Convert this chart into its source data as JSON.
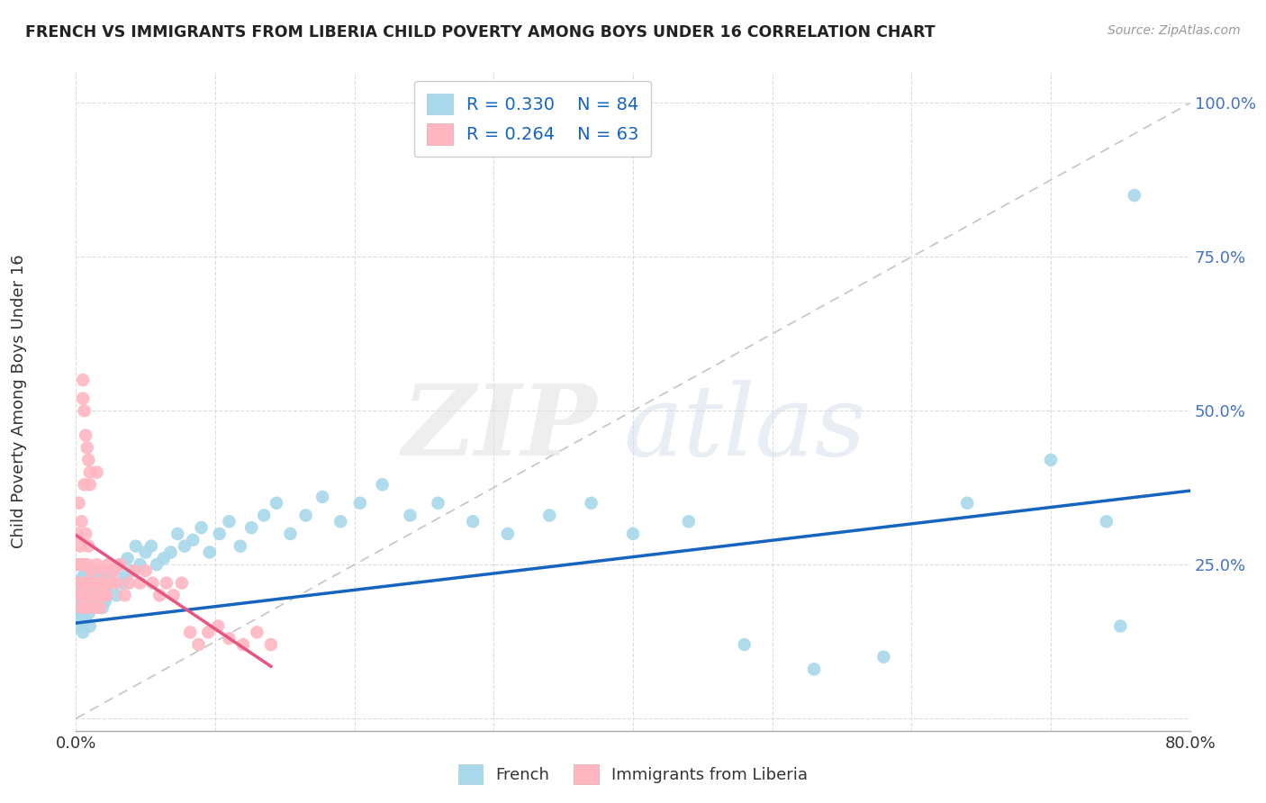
{
  "title": "FRENCH VS IMMIGRANTS FROM LIBERIA CHILD POVERTY AMONG BOYS UNDER 16 CORRELATION CHART",
  "source": "Source: ZipAtlas.com",
  "ylabel": "Child Poverty Among Boys Under 16",
  "xlim": [
    0.0,
    0.8
  ],
  "ylim": [
    -0.02,
    1.05
  ],
  "yticks": [
    0.0,
    0.25,
    0.5,
    0.75,
    1.0
  ],
  "ytick_labels": [
    "",
    "25.0%",
    "50.0%",
    "75.0%",
    "100.0%"
  ],
  "xtick_labels": [
    "0.0%",
    "",
    "",
    "",
    "",
    "",
    "",
    "",
    "80.0%"
  ],
  "french_color": "#A8D8EA",
  "liberia_color": "#FFB6C1",
  "french_line_color": "#1565C0",
  "liberia_line_color": "#E75480",
  "R_french": 0.33,
  "N_french": 84,
  "R_liberia": 0.264,
  "N_liberia": 63,
  "legend_R_color": "#1565C0",
  "french_x": [
    0.001,
    0.002,
    0.002,
    0.003,
    0.003,
    0.003,
    0.004,
    0.004,
    0.004,
    0.005,
    0.005,
    0.005,
    0.006,
    0.006,
    0.007,
    0.007,
    0.008,
    0.008,
    0.009,
    0.009,
    0.01,
    0.01,
    0.011,
    0.011,
    0.012,
    0.013,
    0.014,
    0.015,
    0.016,
    0.017,
    0.018,
    0.019,
    0.02,
    0.021,
    0.022,
    0.023,
    0.025,
    0.027,
    0.029,
    0.031,
    0.033,
    0.035,
    0.037,
    0.04,
    0.043,
    0.046,
    0.05,
    0.054,
    0.058,
    0.063,
    0.068,
    0.073,
    0.078,
    0.084,
    0.09,
    0.096,
    0.103,
    0.11,
    0.118,
    0.126,
    0.135,
    0.144,
    0.154,
    0.165,
    0.177,
    0.19,
    0.204,
    0.22,
    0.24,
    0.26,
    0.285,
    0.31,
    0.34,
    0.37,
    0.4,
    0.44,
    0.48,
    0.53,
    0.58,
    0.64,
    0.7,
    0.74,
    0.75,
    0.76
  ],
  "french_y": [
    0.15,
    0.22,
    0.18,
    0.2,
    0.16,
    0.25,
    0.17,
    0.21,
    0.19,
    0.23,
    0.14,
    0.2,
    0.18,
    0.22,
    0.16,
    0.24,
    0.19,
    0.21,
    0.17,
    0.23,
    0.2,
    0.15,
    0.22,
    0.18,
    0.24,
    0.2,
    0.19,
    0.22,
    0.21,
    0.23,
    0.2,
    0.18,
    0.22,
    0.19,
    0.21,
    0.23,
    0.22,
    0.24,
    0.2,
    0.25,
    0.22,
    0.23,
    0.26,
    0.24,
    0.28,
    0.25,
    0.27,
    0.28,
    0.25,
    0.26,
    0.27,
    0.3,
    0.28,
    0.29,
    0.31,
    0.27,
    0.3,
    0.32,
    0.28,
    0.31,
    0.33,
    0.35,
    0.3,
    0.33,
    0.36,
    0.32,
    0.35,
    0.38,
    0.33,
    0.35,
    0.32,
    0.3,
    0.33,
    0.35,
    0.3,
    0.32,
    0.12,
    0.08,
    0.1,
    0.35,
    0.42,
    0.32,
    0.15,
    0.85
  ],
  "liberia_x": [
    0.001,
    0.001,
    0.002,
    0.002,
    0.003,
    0.003,
    0.004,
    0.004,
    0.005,
    0.005,
    0.005,
    0.006,
    0.006,
    0.007,
    0.007,
    0.008,
    0.008,
    0.009,
    0.009,
    0.01,
    0.01,
    0.011,
    0.012,
    0.013,
    0.014,
    0.015,
    0.016,
    0.017,
    0.018,
    0.019,
    0.02,
    0.021,
    0.022,
    0.023,
    0.025,
    0.027,
    0.029,
    0.032,
    0.035,
    0.038,
    0.042,
    0.046,
    0.05,
    0.055,
    0.06,
    0.065,
    0.07,
    0.076,
    0.082,
    0.088,
    0.095,
    0.102,
    0.11,
    0.12,
    0.13,
    0.14,
    0.005,
    0.006,
    0.007,
    0.008,
    0.009,
    0.01,
    0.015
  ],
  "liberia_y": [
    0.25,
    0.3,
    0.22,
    0.35,
    0.2,
    0.28,
    0.18,
    0.32,
    0.25,
    0.22,
    0.55,
    0.2,
    0.38,
    0.22,
    0.3,
    0.18,
    0.25,
    0.2,
    0.28,
    0.22,
    0.4,
    0.24,
    0.2,
    0.18,
    0.22,
    0.25,
    0.2,
    0.18,
    0.22,
    0.2,
    0.24,
    0.22,
    0.2,
    0.25,
    0.22,
    0.24,
    0.22,
    0.25,
    0.2,
    0.22,
    0.24,
    0.22,
    0.24,
    0.22,
    0.2,
    0.22,
    0.2,
    0.22,
    0.14,
    0.12,
    0.14,
    0.15,
    0.13,
    0.12,
    0.14,
    0.12,
    0.52,
    0.5,
    0.46,
    0.44,
    0.42,
    0.38,
    0.4
  ]
}
